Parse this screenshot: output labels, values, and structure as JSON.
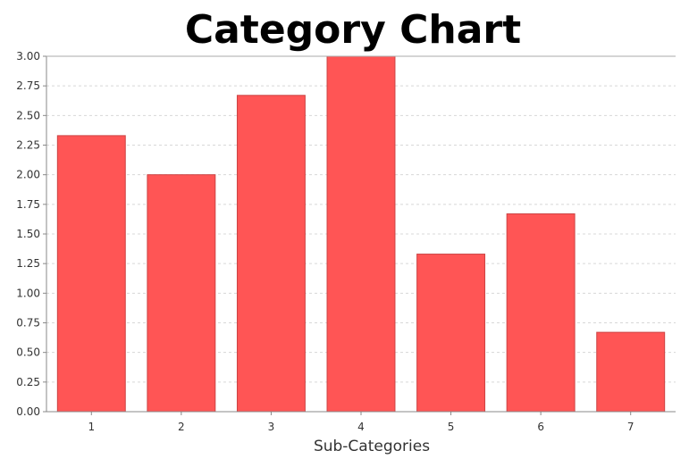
{
  "chart_data": {
    "type": "bar",
    "title": "Category Chart",
    "xlabel": "Sub-Categories",
    "ylabel": "",
    "categories": [
      "1",
      "2",
      "3",
      "4",
      "5",
      "6",
      "7"
    ],
    "values": [
      2.33,
      2.0,
      2.67,
      3.0,
      1.33,
      1.67,
      0.67
    ],
    "ylim": [
      0,
      3
    ],
    "y_ticks": [
      "0.00",
      "0.25",
      "0.50",
      "0.75",
      "1.00",
      "1.25",
      "1.50",
      "1.75",
      "2.00",
      "2.25",
      "2.50",
      "2.75",
      "3.00"
    ],
    "grid": true,
    "legend": "none",
    "bar_color": "#ff5555",
    "bar_outline_color": "#cc4444"
  }
}
